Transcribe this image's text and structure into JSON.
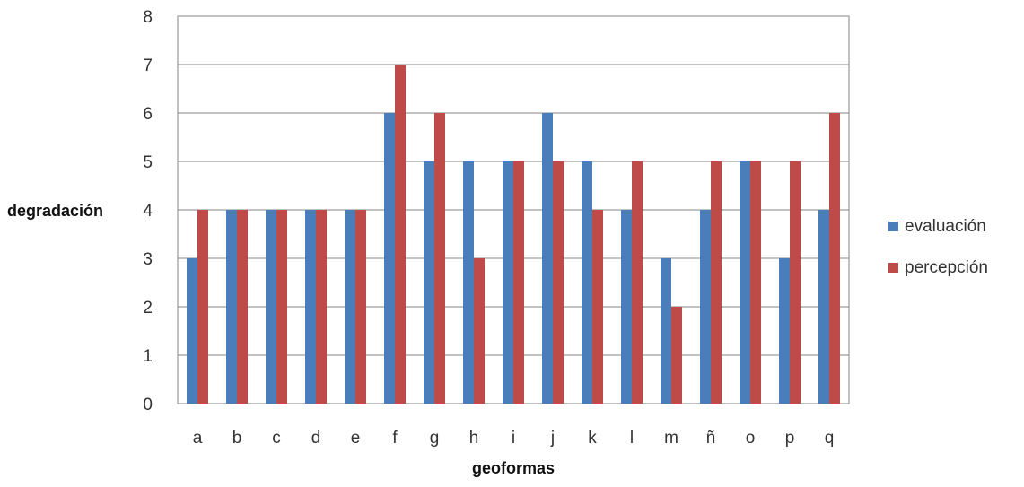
{
  "chart_data": {
    "type": "bar",
    "title": "",
    "xlabel": "geoformas",
    "ylabel": "degradación",
    "categories": [
      "a",
      "b",
      "c",
      "d",
      "e",
      "f",
      "g",
      "h",
      "i",
      "j",
      "k",
      "l",
      "m",
      "ñ",
      "o",
      "p",
      "q"
    ],
    "series": [
      {
        "name": "evaluación",
        "color": "#4a7ebb",
        "values": [
          3,
          4,
          4,
          4,
          4,
          6,
          5,
          5,
          5,
          6,
          5,
          4,
          3,
          4,
          5,
          3,
          4
        ]
      },
      {
        "name": "percepción",
        "color": "#be4b48",
        "values": [
          4,
          4,
          4,
          4,
          4,
          7,
          6,
          3,
          5,
          5,
          4,
          5,
          2,
          5,
          5,
          5,
          6
        ]
      }
    ],
    "ylim": [
      0,
      8
    ],
    "yticks": [
      "0",
      "1",
      "2",
      "3",
      "4",
      "5",
      "6",
      "7",
      "8"
    ],
    "grid": true,
    "legend_position": "right"
  }
}
